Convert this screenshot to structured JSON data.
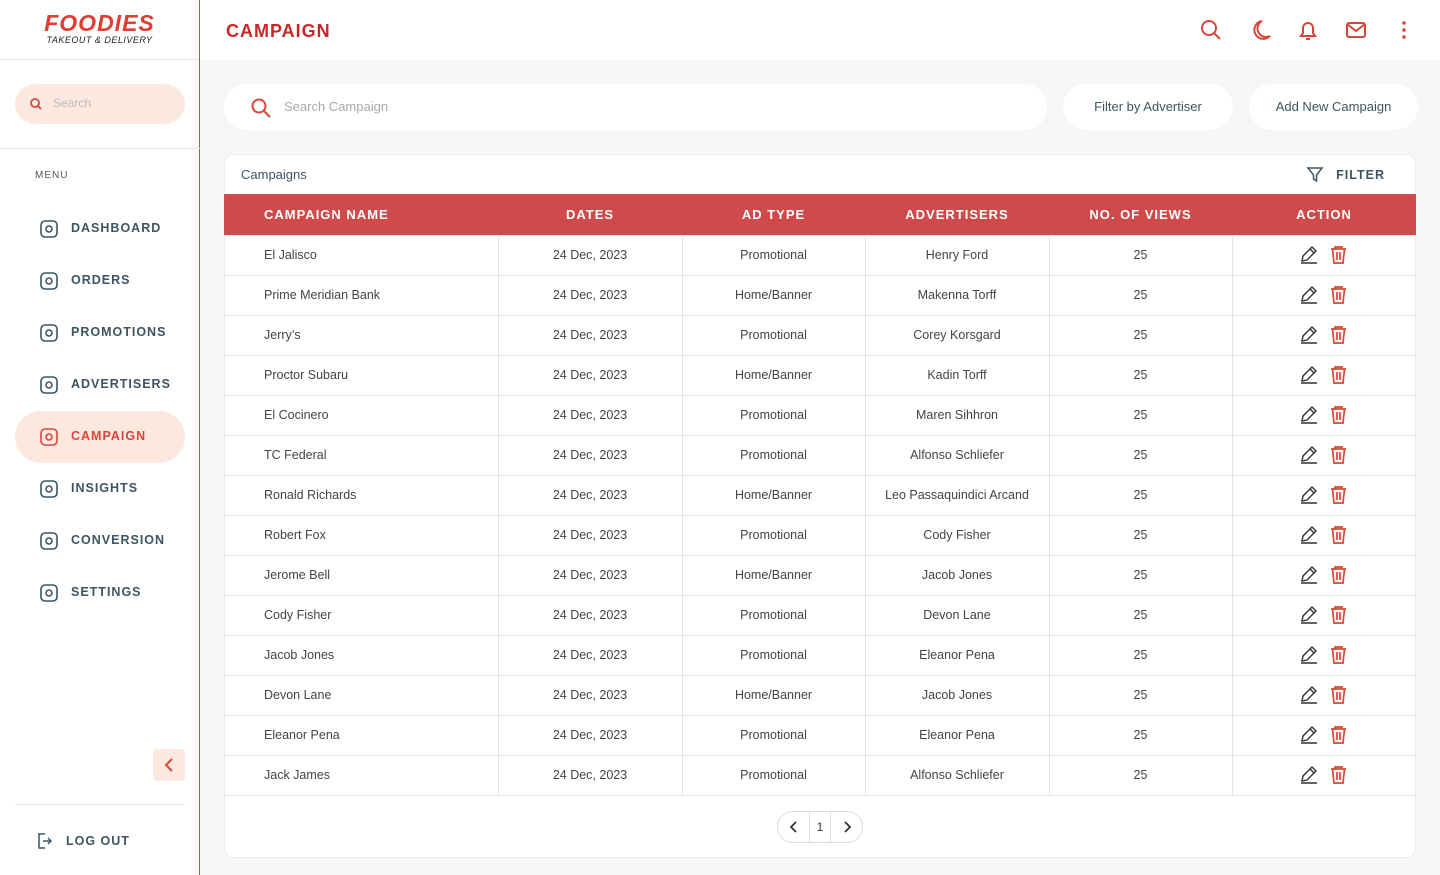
{
  "brand": {
    "name": "FOODIES",
    "tagline": "TAKEOUT & DELIVERY"
  },
  "sidebar": {
    "search_placeholder": "Search",
    "menu_label": "MENU",
    "items": [
      "DASHBOARD",
      "ORDERS",
      "PROMOTIONS",
      "ADVERTISERS",
      "CAMPAIGN",
      "INSIGHTS",
      "CONVERSION",
      "SETTINGS"
    ],
    "active_index": 4,
    "logout": "LOG OUT"
  },
  "header": {
    "title": "CAMPAIGN"
  },
  "toolbar": {
    "search_placeholder": "Search Campaign",
    "buttons": [
      "Filter by Advertiser",
      "Add New Campaign"
    ]
  },
  "table": {
    "title": "Campaigns",
    "filter_label": "FILTER",
    "columns": [
      "CAMPAIGN NAME",
      "DATES",
      "AD TYPE",
      "ADVERTISERS",
      "NO. OF VIEWS",
      "ACTION"
    ],
    "rows": [
      [
        "El Jalisco",
        "24 Dec, 2023",
        "Promotional",
        "Henry Ford",
        25
      ],
      [
        "Prime Meridian Bank",
        "24 Dec, 2023",
        "Home/Banner",
        "Makenna Torff",
        25
      ],
      [
        "Jerry’s",
        "24 Dec, 2023",
        "Promotional",
        "Corey Korsgard",
        25
      ],
      [
        "Proctor Subaru",
        "24 Dec, 2023",
        "Home/Banner",
        "Kadin Torff",
        25
      ],
      [
        "El Cocinero",
        "24 Dec, 2023",
        "Promotional",
        "Maren Sihhron",
        25
      ],
      [
        "TC Federal",
        "24 Dec, 2023",
        "Promotional",
        "Alfonso Schliefer",
        25
      ],
      [
        "Ronald Richards",
        "24 Dec, 2023",
        "Home/Banner",
        "Leo Passaquindici Arcand",
        25
      ],
      [
        "Robert Fox",
        "24 Dec, 2023",
        "Promotional",
        "Cody Fisher",
        25
      ],
      [
        "Jerome Bell",
        "24 Dec, 2023",
        "Home/Banner",
        "Jacob Jones",
        25
      ],
      [
        "Cody Fisher",
        "24 Dec, 2023",
        "Promotional",
        "Devon Lane",
        25
      ],
      [
        "Jacob Jones",
        "24 Dec, 2023",
        "Promotional",
        "Eleanor Pena",
        25
      ],
      [
        "Devon Lane",
        "24 Dec, 2023",
        "Home/Banner",
        "Jacob Jones",
        25
      ],
      [
        "Eleanor Pena",
        "24 Dec, 2023",
        "Promotional",
        "Eleanor Pena",
        25
      ],
      [
        "Jack James",
        "24 Dec, 2023",
        "Promotional",
        "Alfonso Schliefer",
        25
      ]
    ]
  },
  "pagination": {
    "page": 1
  }
}
